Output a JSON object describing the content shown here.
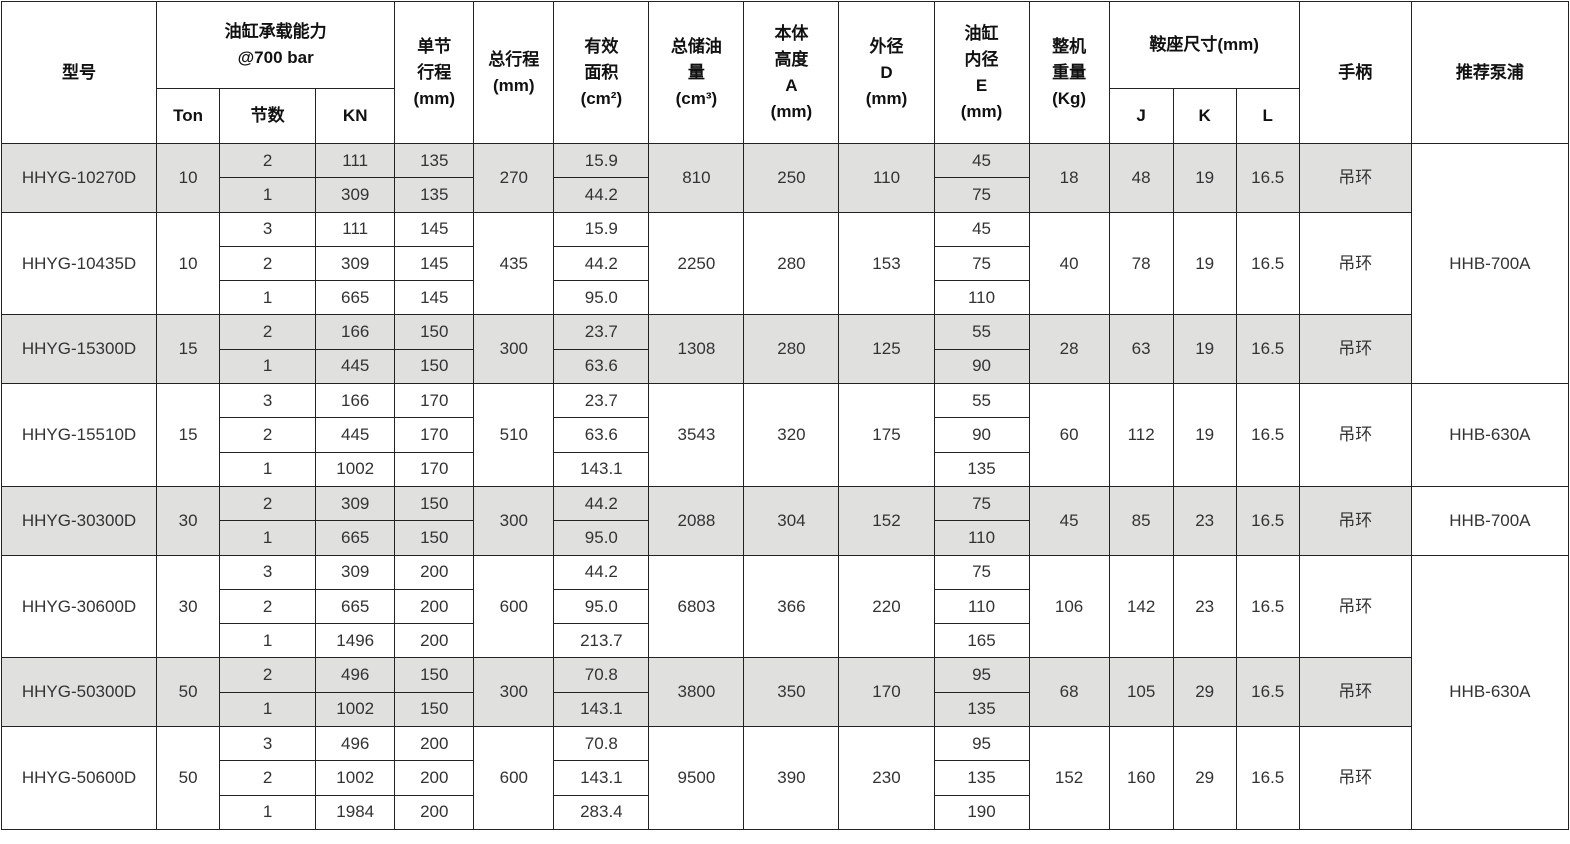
{
  "header": {
    "model": "型号",
    "capacity": "油缸承载能力\n@700 bar",
    "ton": "Ton",
    "sections": "节数",
    "kn": "KN",
    "stage_stroke": "单节\n行程\n(mm)",
    "total_stroke": "总行程\n(mm)",
    "area": "有效\n面积\n(cm²)",
    "oil": "总储油\n量\n(cm³)",
    "height": "本体\n高度\nA\n(mm)",
    "od": "外径\nD\n(mm)",
    "bore": "油缸\n内径\nE\n(mm)",
    "weight": "整机\n重量\n(Kg)",
    "saddle": "鞍座尺寸(mm)",
    "j": "J",
    "k": "K",
    "l": "L",
    "handle": "手柄",
    "pump": "推荐泵浦"
  },
  "colors": {
    "shaded_row": "#e0e1df",
    "border": "#222222"
  },
  "groups": [
    {
      "model": "HHYG-10270D",
      "ton": "10",
      "total": "270",
      "oil": "810",
      "height": "250",
      "od": "110",
      "weight": "18",
      "j": "48",
      "k": "19",
      "l": "16.5",
      "handle": "吊环",
      "shaded": true,
      "stages": [
        {
          "n": "2",
          "kn": "111",
          "stroke": "135",
          "area": "15.9",
          "bore": "45"
        },
        {
          "n": "1",
          "kn": "309",
          "stroke": "135",
          "area": "44.2",
          "bore": "75"
        }
      ]
    },
    {
      "model": "HHYG-10435D",
      "ton": "10",
      "total": "435",
      "oil": "2250",
      "height": "280",
      "od": "153",
      "weight": "40",
      "j": "78",
      "k": "19",
      "l": "16.5",
      "handle": "吊环",
      "shaded": false,
      "stages": [
        {
          "n": "3",
          "kn": "111",
          "stroke": "145",
          "area": "15.9",
          "bore": "45"
        },
        {
          "n": "2",
          "kn": "309",
          "stroke": "145",
          "area": "44.2",
          "bore": "75"
        },
        {
          "n": "1",
          "kn": "665",
          "stroke": "145",
          "area": "95.0",
          "bore": "110"
        }
      ]
    },
    {
      "model": "HHYG-15300D",
      "ton": "15",
      "total": "300",
      "oil": "1308",
      "height": "280",
      "od": "125",
      "weight": "28",
      "j": "63",
      "k": "19",
      "l": "16.5",
      "handle": "吊环",
      "shaded": true,
      "stages": [
        {
          "n": "2",
          "kn": "166",
          "stroke": "150",
          "area": "23.7",
          "bore": "55"
        },
        {
          "n": "1",
          "kn": "445",
          "stroke": "150",
          "area": "63.6",
          "bore": "90"
        }
      ]
    },
    {
      "model": "HHYG-15510D",
      "ton": "15",
      "total": "510",
      "oil": "3543",
      "height": "320",
      "od": "175",
      "weight": "60",
      "j": "112",
      "k": "19",
      "l": "16.5",
      "handle": "吊环",
      "shaded": false,
      "stages": [
        {
          "n": "3",
          "kn": "166",
          "stroke": "170",
          "area": "23.7",
          "bore": "55"
        },
        {
          "n": "2",
          "kn": "445",
          "stroke": "170",
          "area": "63.6",
          "bore": "90"
        },
        {
          "n": "1",
          "kn": "1002",
          "stroke": "170",
          "area": "143.1",
          "bore": "135"
        }
      ]
    },
    {
      "model": "HHYG-30300D",
      "ton": "30",
      "total": "300",
      "oil": "2088",
      "height": "304",
      "od": "152",
      "weight": "45",
      "j": "85",
      "k": "23",
      "l": "16.5",
      "handle": "吊环",
      "shaded": true,
      "stages": [
        {
          "n": "2",
          "kn": "309",
          "stroke": "150",
          "area": "44.2",
          "bore": "75"
        },
        {
          "n": "1",
          "kn": "665",
          "stroke": "150",
          "area": "95.0",
          "bore": "110"
        }
      ]
    },
    {
      "model": "HHYG-30600D",
      "ton": "30",
      "total": "600",
      "oil": "6803",
      "height": "366",
      "od": "220",
      "weight": "106",
      "j": "142",
      "k": "23",
      "l": "16.5",
      "handle": "吊环",
      "shaded": false,
      "stages": [
        {
          "n": "3",
          "kn": "309",
          "stroke": "200",
          "area": "44.2",
          "bore": "75"
        },
        {
          "n": "2",
          "kn": "665",
          "stroke": "200",
          "area": "95.0",
          "bore": "110"
        },
        {
          "n": "1",
          "kn": "1496",
          "stroke": "200",
          "area": "213.7",
          "bore": "165"
        }
      ]
    },
    {
      "model": "HHYG-50300D",
      "ton": "50",
      "total": "300",
      "oil": "3800",
      "height": "350",
      "od": "170",
      "weight": "68",
      "j": "105",
      "k": "29",
      "l": "16.5",
      "handle": "吊环",
      "shaded": true,
      "stages": [
        {
          "n": "2",
          "kn": "496",
          "stroke": "150",
          "area": "70.8",
          "bore": "95"
        },
        {
          "n": "1",
          "kn": "1002",
          "stroke": "150",
          "area": "143.1",
          "bore": "135"
        }
      ]
    },
    {
      "model": "HHYG-50600D",
      "ton": "50",
      "total": "600",
      "oil": "9500",
      "height": "390",
      "od": "230",
      "weight": "152",
      "j": "160",
      "k": "29",
      "l": "16.5",
      "handle": "吊环",
      "shaded": false,
      "stages": [
        {
          "n": "3",
          "kn": "496",
          "stroke": "200",
          "area": "70.8",
          "bore": "95"
        },
        {
          "n": "2",
          "kn": "1002",
          "stroke": "200",
          "area": "143.1",
          "bore": "135"
        },
        {
          "n": "1",
          "kn": "1984",
          "stroke": "200",
          "area": "283.4",
          "bore": "190"
        }
      ]
    }
  ],
  "pumps": [
    {
      "label": "HHB-700A",
      "groups": 3
    },
    {
      "label": "HHB-630A",
      "groups": 1
    },
    {
      "label": "HHB-700A",
      "groups": 1
    },
    {
      "label": "HHB-630A",
      "groups": 3
    }
  ]
}
